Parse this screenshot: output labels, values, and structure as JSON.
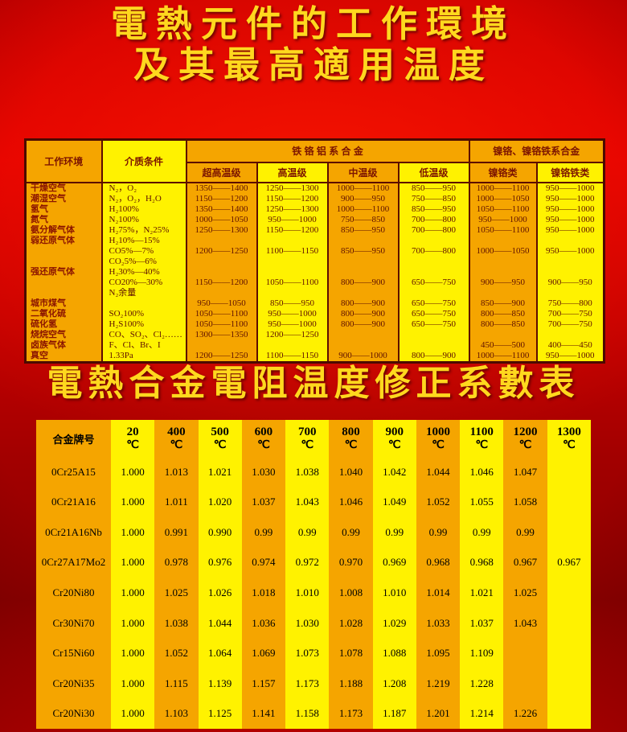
{
  "title1": {
    "line1": "電熱元件的工作環境",
    "line2": "及其最高適用温度"
  },
  "title2": "電熱合金電阻温度修正系數表",
  "colors": {
    "background_red": "#d90000",
    "stripe_orange": "#f5a500",
    "stripe_yellow": "#fff200",
    "table_border": "#5d0c00",
    "title_yellow": "#ffd81e",
    "table1_text": "#6b1200",
    "table2_text": "#000000"
  },
  "table1": {
    "header": {
      "col_env": "工作环境",
      "col_medium": "介质条件",
      "group_fecral": "铁 铬 铝 系 合 金",
      "group_nicr": "镍铬、镍铬铁系合金",
      "sub": [
        "超高温级",
        "高温级",
        "中温级",
        "低温级",
        "镍铬类",
        "镍铬铁类"
      ]
    },
    "lines": [
      [
        "干燥空气",
        "N₂，O₂",
        "1350——1400",
        "1250——1300",
        "1000——1100",
        "850——950",
        "1000——1100",
        "950——1000"
      ],
      [
        "潮湿空气",
        "N₂，O₂，H₂O",
        "1150——1200",
        "1150——1200",
        "900——950",
        "750——850",
        "1000——1050",
        "950——1000"
      ],
      [
        "氢气",
        "H₂100%",
        "1350——1400",
        "1250——1300",
        "1000——1100",
        "850——950",
        "1050——1100",
        "950——1000"
      ],
      [
        "氮气",
        "N₂100%",
        "1000——1050",
        "950——1000",
        "750——850",
        "700——800",
        "950——1000",
        "950——1000"
      ],
      [
        "氨分解气体",
        "H₂75%，N₂25%",
        "1250——1300",
        "1150——1200",
        "850——950",
        "700——800",
        "1050——1100",
        "950——1000"
      ],
      [
        "弱还原气体",
        "H₂10%—15%",
        "",
        "",
        "",
        "",
        "",
        ""
      ],
      [
        "",
        "CO5%—7%",
        "1200——1250",
        "1100——1150",
        "850——950",
        "700——800",
        "1000——1050",
        "950——1000"
      ],
      [
        "",
        "CO₂5%—6%",
        "",
        "",
        "",
        "",
        "",
        ""
      ],
      [
        "强还原气体",
        "H₂30%—40%",
        "",
        "",
        "",
        "",
        "",
        ""
      ],
      [
        "",
        "CO20%—30%",
        "1150——1200",
        "1050——1100",
        "800——900",
        "650——750",
        "900——950",
        "900——950"
      ],
      [
        "",
        "N₂余量",
        "",
        "",
        "",
        "",
        "",
        ""
      ],
      [
        "城市煤气",
        "",
        "950——1050",
        "850——950",
        "800——900",
        "650——750",
        "850——900",
        "750——800"
      ],
      [
        "二氧化硫",
        "SO₂100%",
        "1050——1100",
        "950——1000",
        "800——900",
        "650——750",
        "800——850",
        "700——750"
      ],
      [
        "硫化氢",
        "H₂S100%",
        "1050——1100",
        "950——1000",
        "800——900",
        "650——750",
        "800——850",
        "700——750"
      ],
      [
        "烧烷空气",
        "CO、SO₂、Cl₂……",
        "1300——1350",
        "1200——1250",
        "",
        "",
        "",
        ""
      ],
      [
        "卤族气体",
        "F、Cl、Br、I",
        "",
        "",
        "",
        "",
        "450——500",
        "400——450"
      ],
      [
        "真空",
        "1.33Pa",
        "1200——1250",
        "1100——1150",
        "900——1000",
        "800——900",
        "1000——1100",
        "950——1000"
      ]
    ]
  },
  "table2": {
    "corner": "合金牌号",
    "unit": "℃",
    "temps": [
      "20",
      "400",
      "500",
      "600",
      "700",
      "800",
      "900",
      "1000",
      "1100",
      "1200",
      "1300"
    ],
    "rows": [
      {
        "grade": "0Cr25A15",
        "values": [
          "1.000",
          "1.013",
          "1.021",
          "1.030",
          "1.038",
          "1.040",
          "1.042",
          "1.044",
          "1.046",
          "1.047",
          ""
        ]
      },
      {
        "grade": "0Cr21A16",
        "values": [
          "1.000",
          "1.011",
          "1.020",
          "1.037",
          "1.043",
          "1.046",
          "1.049",
          "1.052",
          "1.055",
          "1.058",
          ""
        ]
      },
      {
        "grade": "0Cr21A16Nb",
        "values": [
          "1.000",
          "0.991",
          "0.990",
          "0.99",
          "0.99",
          "0.99",
          "0.99",
          "0.99",
          "0.99",
          "0.99",
          ""
        ]
      },
      {
        "grade": "0Cr27A17Mo2",
        "values": [
          "1.000",
          "0.978",
          "0.976",
          "0.974",
          "0.972",
          "0.970",
          "0.969",
          "0.968",
          "0.968",
          "0.967",
          "0.967"
        ]
      },
      {
        "grade": "Cr20Ni80",
        "values": [
          "1.000",
          "1.025",
          "1.026",
          "1.018",
          "1.010",
          "1.008",
          "1.010",
          "1.014",
          "1.021",
          "1.025",
          ""
        ]
      },
      {
        "grade": "Cr30Ni70",
        "values": [
          "1.000",
          "1.038",
          "1.044",
          "1.036",
          "1.030",
          "1.028",
          "1.029",
          "1.033",
          "1.037",
          "1.043",
          ""
        ]
      },
      {
        "grade": "Cr15Ni60",
        "values": [
          "1.000",
          "1.052",
          "1.064",
          "1.069",
          "1.073",
          "1.078",
          "1.088",
          "1.095",
          "1.109",
          "",
          ""
        ]
      },
      {
        "grade": "Cr20Ni35",
        "values": [
          "1.000",
          "1.115",
          "1.139",
          "1.157",
          "1.173",
          "1.188",
          "1.208",
          "1.219",
          "1.228",
          "",
          ""
        ]
      },
      {
        "grade": "Cr20Ni30",
        "values": [
          "1.000",
          "1.103",
          "1.125",
          "1.141",
          "1.158",
          "1.173",
          "1.187",
          "1.201",
          "1.214",
          "1.226",
          ""
        ]
      }
    ]
  }
}
